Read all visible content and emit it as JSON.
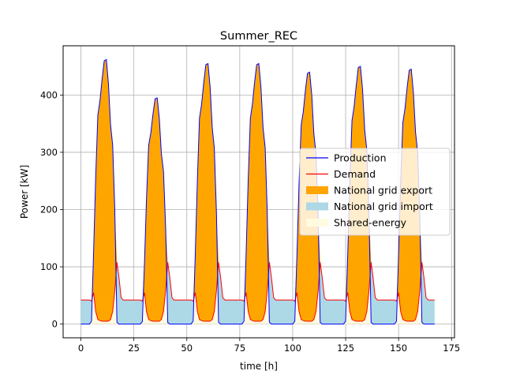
{
  "chart_data": {
    "type": "area",
    "title": "Summer_REC",
    "xlabel": "time [h]",
    "ylabel": "Power [kW]",
    "xlim": [
      -8.4,
      176.4
    ],
    "ylim": [
      -24,
      486
    ],
    "xticks": [
      0,
      25,
      50,
      75,
      100,
      125,
      150,
      175
    ],
    "yticks": [
      0,
      100,
      200,
      300,
      400
    ],
    "grid": true,
    "legend_position": "center-right",
    "days": 7,
    "hours_per_day": 24,
    "production_profile_hourly": [
      0,
      0,
      0,
      0,
      0,
      5,
      125,
      258,
      365,
      390,
      428,
      460,
      462,
      420,
      348,
      312,
      198,
      3,
      0,
      0,
      0,
      0,
      0,
      0
    ],
    "day_peak_production": [
      462,
      395,
      455,
      455,
      440,
      450,
      445
    ],
    "demand_profile_hourly": [
      42,
      42,
      42,
      42,
      42,
      40,
      55,
      22,
      8,
      6,
      5,
      5,
      5,
      5,
      8,
      22,
      58,
      108,
      80,
      46,
      42,
      42,
      42,
      42
    ],
    "series": [
      {
        "name": "Production",
        "color": "#0000ff",
        "kind": "line"
      },
      {
        "name": "Demand",
        "color": "#ff0000",
        "kind": "line"
      },
      {
        "name": "National grid export",
        "color": "#ffa500",
        "kind": "fill"
      },
      {
        "name": "National grid import",
        "color": "#add8e6",
        "kind": "fill"
      },
      {
        "name": "Shared-energy",
        "color": "#fffbe0",
        "kind": "fill"
      }
    ]
  }
}
